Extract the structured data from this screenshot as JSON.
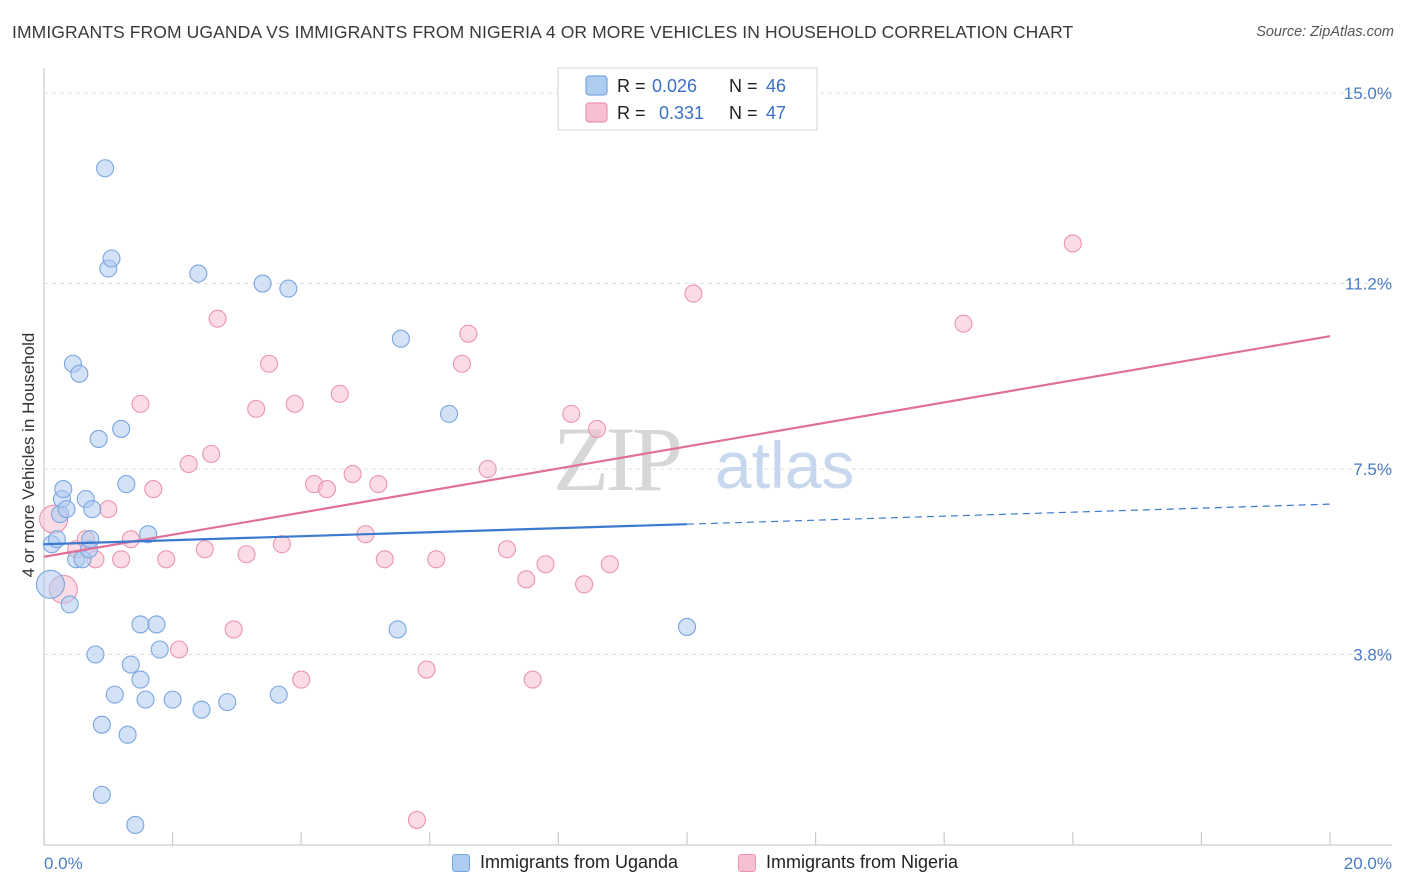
{
  "header": {
    "title": "IMMIGRANTS FROM UGANDA VS IMMIGRANTS FROM NIGERIA 4 OR MORE VEHICLES IN HOUSEHOLD CORRELATION CHART",
    "source": "Source: ZipAtlas.com"
  },
  "watermark": {
    "zip": "ZIP",
    "atlas": "atlas"
  },
  "legend": {
    "r_label": "R =",
    "n_label": "N =",
    "series": [
      {
        "r": "0.026",
        "n": "46"
      },
      {
        "r": "0.331",
        "n": "47"
      }
    ]
  },
  "colors": {
    "uganda_fill": "#aecbf0",
    "uganda_stroke": "#7aa6e0",
    "uganda_line": "#3b78d0",
    "nigeria_fill": "#f7c0d0",
    "nigeria_stroke": "#eb94b0",
    "nigeria_line": "#e0709a",
    "tick_text": "#4a7cc4"
  },
  "chart_data": {
    "type": "scatter",
    "title": "IMMIGRANTS FROM UGANDA VS IMMIGRANTS FROM NIGERIA 4 OR MORE VEHICLES IN HOUSEHOLD CORRELATION CHART",
    "xlabel": "",
    "ylabel": "4 or more Vehicles in Household",
    "xlim": [
      0,
      20
    ],
    "ylim": [
      0,
      15.5
    ],
    "x_tick_labels": [
      {
        "value": 0,
        "label": "0.0%"
      },
      {
        "value": 20,
        "label": "20.0%"
      }
    ],
    "y_tick_labels": [
      {
        "value": 3.8,
        "label": "3.8%"
      },
      {
        "value": 7.5,
        "label": "7.5%"
      },
      {
        "value": 11.2,
        "label": "11.2%"
      },
      {
        "value": 15.0,
        "label": "15.0%"
      }
    ],
    "series": [
      {
        "name": "Immigrants from Uganda",
        "r": 0.026,
        "n": 46,
        "trend": {
          "x0": 0,
          "y0": 6.0,
          "x1": 10.0,
          "y1": 6.4,
          "dash_x1": 20.0,
          "dash_y1": 6.8
        },
        "points": [
          {
            "x": 0.1,
            "y": 5.2,
            "big": true
          },
          {
            "x": 0.12,
            "y": 6.0
          },
          {
            "x": 0.2,
            "y": 6.1
          },
          {
            "x": 0.25,
            "y": 6.6
          },
          {
            "x": 0.28,
            "y": 6.9
          },
          {
            "x": 0.3,
            "y": 7.1
          },
          {
            "x": 0.35,
            "y": 6.7
          },
          {
            "x": 0.4,
            "y": 4.8
          },
          {
            "x": 0.45,
            "y": 9.6
          },
          {
            "x": 0.5,
            "y": 5.7
          },
          {
            "x": 0.55,
            "y": 9.4
          },
          {
            "x": 0.6,
            "y": 5.7
          },
          {
            "x": 0.65,
            "y": 6.9
          },
          {
            "x": 0.7,
            "y": 5.9
          },
          {
            "x": 0.72,
            "y": 6.1
          },
          {
            "x": 0.75,
            "y": 6.7
          },
          {
            "x": 0.8,
            "y": 3.8
          },
          {
            "x": 0.85,
            "y": 8.1
          },
          {
            "x": 0.9,
            "y": 2.4
          },
          {
            "x": 0.9,
            "y": 1.0
          },
          {
            "x": 0.95,
            "y": 13.5
          },
          {
            "x": 1.0,
            "y": 11.5
          },
          {
            "x": 1.05,
            "y": 11.7
          },
          {
            "x": 1.1,
            "y": 3.0
          },
          {
            "x": 1.2,
            "y": 8.3
          },
          {
            "x": 1.28,
            "y": 7.2
          },
          {
            "x": 1.3,
            "y": 2.2
          },
          {
            "x": 1.35,
            "y": 3.6
          },
          {
            "x": 1.42,
            "y": 0.4
          },
          {
            "x": 1.5,
            "y": 3.3
          },
          {
            "x": 1.5,
            "y": 4.4
          },
          {
            "x": 1.58,
            "y": 2.9
          },
          {
            "x": 1.62,
            "y": 6.2
          },
          {
            "x": 1.75,
            "y": 4.4
          },
          {
            "x": 1.8,
            "y": 3.9
          },
          {
            "x": 2.0,
            "y": 2.9
          },
          {
            "x": 2.4,
            "y": 11.4
          },
          {
            "x": 2.45,
            "y": 2.7
          },
          {
            "x": 2.85,
            "y": 2.85
          },
          {
            "x": 3.4,
            "y": 11.2
          },
          {
            "x": 3.65,
            "y": 3.0
          },
          {
            "x": 3.8,
            "y": 11.1
          },
          {
            "x": 5.5,
            "y": 4.3
          },
          {
            "x": 5.55,
            "y": 10.1
          },
          {
            "x": 6.3,
            "y": 8.6
          },
          {
            "x": 10.0,
            "y": 4.35
          }
        ]
      },
      {
        "name": "Immigrants from Nigeria",
        "r": 0.331,
        "n": 47,
        "trend": {
          "x0": 0,
          "y0": 5.75,
          "x1": 20.0,
          "y1": 10.15
        },
        "points": [
          {
            "x": 0.15,
            "y": 6.5,
            "big": true
          },
          {
            "x": 0.3,
            "y": 5.1,
            "big": true
          },
          {
            "x": 0.5,
            "y": 5.9
          },
          {
            "x": 0.65,
            "y": 6.1
          },
          {
            "x": 0.8,
            "y": 5.7
          },
          {
            "x": 1.0,
            "y": 6.7
          },
          {
            "x": 1.2,
            "y": 5.7
          },
          {
            "x": 1.35,
            "y": 6.1
          },
          {
            "x": 1.5,
            "y": 8.8
          },
          {
            "x": 1.7,
            "y": 7.1
          },
          {
            "x": 1.9,
            "y": 5.7
          },
          {
            "x": 2.1,
            "y": 3.9
          },
          {
            "x": 2.25,
            "y": 7.6
          },
          {
            "x": 2.5,
            "y": 5.9
          },
          {
            "x": 2.6,
            "y": 7.8
          },
          {
            "x": 2.7,
            "y": 10.5
          },
          {
            "x": 2.95,
            "y": 4.3
          },
          {
            "x": 3.15,
            "y": 5.8
          },
          {
            "x": 3.3,
            "y": 8.7
          },
          {
            "x": 3.5,
            "y": 9.6
          },
          {
            "x": 3.7,
            "y": 6.0
          },
          {
            "x": 3.9,
            "y": 8.8
          },
          {
            "x": 4.0,
            "y": 3.3
          },
          {
            "x": 4.2,
            "y": 7.2
          },
          {
            "x": 4.4,
            "y": 7.1
          },
          {
            "x": 4.6,
            "y": 9.0
          },
          {
            "x": 4.8,
            "y": 7.4
          },
          {
            "x": 5.0,
            "y": 6.2
          },
          {
            "x": 5.2,
            "y": 7.2
          },
          {
            "x": 5.3,
            "y": 5.7
          },
          {
            "x": 5.8,
            "y": 0.5
          },
          {
            "x": 5.95,
            "y": 3.5
          },
          {
            "x": 6.1,
            "y": 5.7
          },
          {
            "x": 6.5,
            "y": 9.6
          },
          {
            "x": 6.6,
            "y": 10.2
          },
          {
            "x": 6.9,
            "y": 7.5
          },
          {
            "x": 7.2,
            "y": 5.9
          },
          {
            "x": 7.5,
            "y": 5.3
          },
          {
            "x": 7.6,
            "y": 3.3
          },
          {
            "x": 7.8,
            "y": 5.6
          },
          {
            "x": 8.2,
            "y": 8.6
          },
          {
            "x": 8.4,
            "y": 5.2
          },
          {
            "x": 8.6,
            "y": 8.3
          },
          {
            "x": 8.8,
            "y": 5.6
          },
          {
            "x": 10.1,
            "y": 11.0
          },
          {
            "x": 14.3,
            "y": 10.4
          },
          {
            "x": 16.0,
            "y": 12.0
          }
        ]
      }
    ]
  },
  "bottom_legend": {
    "uganda": "Immigrants from Uganda",
    "nigeria": "Immigrants from Nigeria"
  }
}
